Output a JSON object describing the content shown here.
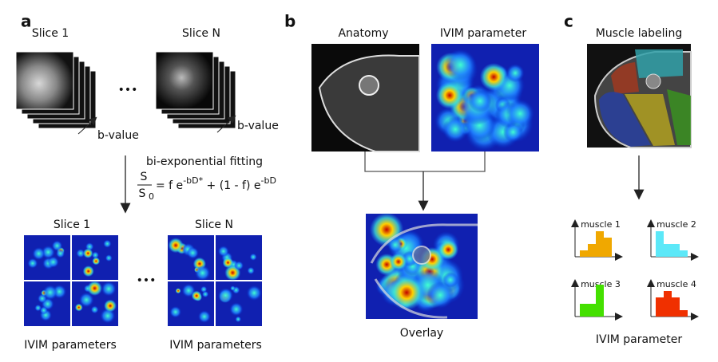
{
  "panel_a": {
    "label": "a",
    "top_slices": [
      "Slice 1",
      "Slice N"
    ],
    "dots": [
      "•••",
      "•••"
    ],
    "b_value": [
      "b-value",
      "b-value"
    ],
    "fitting": "bi-exponential fitting",
    "equation": {
      "numerator": "S",
      "denominator": "S",
      "denominator_sub": "0",
      "rhs_1": "= f e",
      "exp_1": "-bD*",
      "rhs_2": " + (1 - f) e",
      "exp_2": "-bD"
    },
    "bottom_slices": [
      "Slice 1",
      "Slice N"
    ],
    "outputs": [
      "IVIM parameters",
      "IVIM parameters"
    ]
  },
  "panel_b": {
    "label": "b",
    "anatomy": "Anatomy",
    "ivim": "IVIM parameter",
    "overlay": "Overlay"
  },
  "panel_c": {
    "label": "c",
    "title": "Muscle labeling",
    "x_label": "IVIM parameter",
    "muscles": [
      {
        "name": "muscle 1",
        "color": "#f0a800",
        "values": [
          1,
          2,
          4,
          3
        ]
      },
      {
        "name": "muscle 2",
        "color": "#5ce8f8",
        "values": [
          4,
          2,
          2,
          1
        ]
      },
      {
        "name": "muscle 3",
        "color": "#44e000",
        "values": [
          2,
          2,
          5,
          0
        ]
      },
      {
        "name": "muscle 4",
        "color": "#f03000",
        "values": [
          3,
          4,
          3,
          1
        ]
      }
    ]
  }
}
